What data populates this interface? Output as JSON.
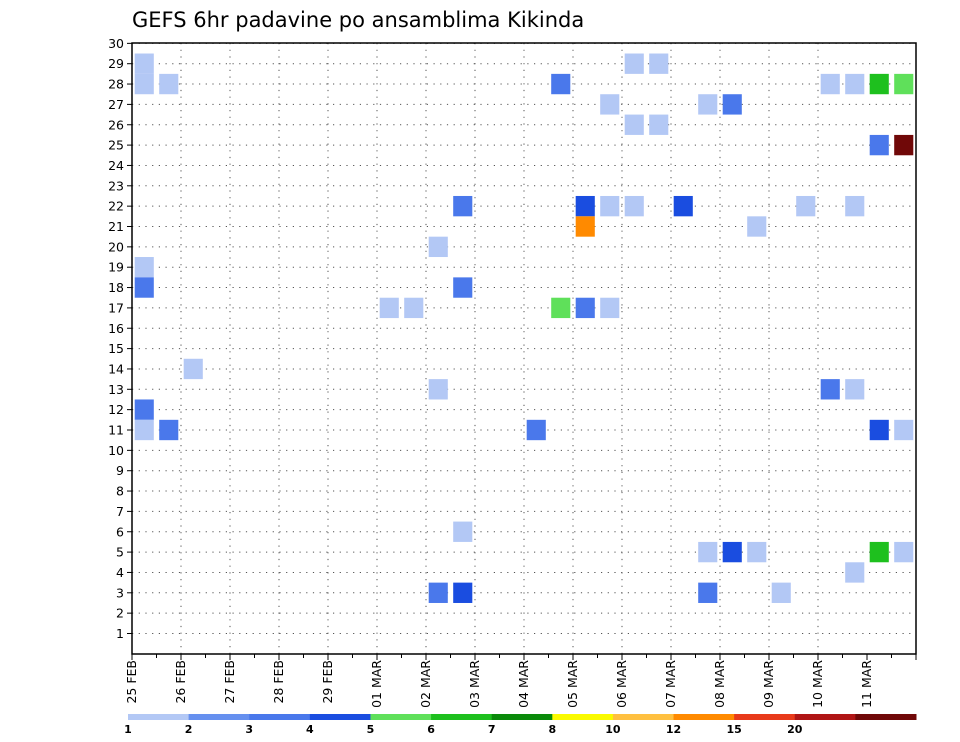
{
  "chart_data": {
    "type": "heatmap",
    "title": "GEFS 6hr padavine po ansamblima Kikinda",
    "y_ticks": [
      "1",
      "2",
      "3",
      "4",
      "5",
      "6",
      "7",
      "8",
      "9",
      "10",
      "11",
      "12",
      "13",
      "14",
      "15",
      "16",
      "17",
      "18",
      "19",
      "20",
      "21",
      "22",
      "23",
      "24",
      "25",
      "26",
      "27",
      "28",
      "29",
      "30"
    ],
    "ylim": [
      0,
      30
    ],
    "x_ticks": [
      "25 FEB",
      "26 FEB",
      "27 FEB",
      "28 FEB",
      "29 FEB",
      "01 MAR",
      "02 MAR",
      "03 MAR",
      "04 MAR",
      "05 MAR",
      "06 MAR",
      "07 MAR",
      "08 MAR",
      "09 MAR",
      "10 MAR",
      "11 MAR"
    ],
    "x_unit": "6-hour step",
    "grid": true,
    "legend": {
      "position": "bottom",
      "labels": [
        "1",
        "2",
        "3",
        "4",
        "5",
        "6",
        "7",
        "8",
        "10",
        "12",
        "15",
        "20"
      ],
      "colors": [
        "#b3c8f5",
        "#6690ef",
        "#4a78eb",
        "#1a4de0",
        "#5fe05a",
        "#1ec01e",
        "#0a8a0a",
        "#fafa00",
        "#ffc040",
        "#ff8a00",
        "#e83a1a",
        "#b01515",
        "#700808"
      ]
    },
    "cells": [
      {
        "x": 0,
        "y": 29,
        "c": 0
      },
      {
        "x": 0,
        "y": 28,
        "c": 0
      },
      {
        "x": 1,
        "y": 28,
        "c": 0
      },
      {
        "x": 17,
        "y": 28,
        "c": 2
      },
      {
        "x": 20,
        "y": 29,
        "c": 0
      },
      {
        "x": 21,
        "y": 29,
        "c": 0
      },
      {
        "x": 28,
        "y": 28,
        "c": 0
      },
      {
        "x": 29,
        "y": 28,
        "c": 0
      },
      {
        "x": 30,
        "y": 28,
        "c": 5
      },
      {
        "x": 31,
        "y": 28,
        "c": 4
      },
      {
        "x": 19,
        "y": 27,
        "c": 0
      },
      {
        "x": 23,
        "y": 27,
        "c": 0
      },
      {
        "x": 24,
        "y": 27,
        "c": 2
      },
      {
        "x": 20,
        "y": 26,
        "c": 0
      },
      {
        "x": 21,
        "y": 26,
        "c": 0
      },
      {
        "x": 30,
        "y": 25,
        "c": 2
      },
      {
        "x": 31,
        "y": 25,
        "c": 12
      },
      {
        "x": 13,
        "y": 22,
        "c": 2
      },
      {
        "x": 18,
        "y": 22,
        "c": 3
      },
      {
        "x": 19,
        "y": 22,
        "c": 0
      },
      {
        "x": 20,
        "y": 22,
        "c": 0
      },
      {
        "x": 22,
        "y": 22,
        "c": 3
      },
      {
        "x": 27,
        "y": 22,
        "c": 0
      },
      {
        "x": 29,
        "y": 22,
        "c": 0
      },
      {
        "x": 18,
        "y": 21,
        "c": 9
      },
      {
        "x": 25,
        "y": 21,
        "c": 0
      },
      {
        "x": 12,
        "y": 20,
        "c": 0
      },
      {
        "x": 0,
        "y": 19,
        "c": 0
      },
      {
        "x": 0,
        "y": 18,
        "c": 2
      },
      {
        "x": 13,
        "y": 18,
        "c": 2
      },
      {
        "x": 10,
        "y": 17,
        "c": 0
      },
      {
        "x": 11,
        "y": 17,
        "c": 0
      },
      {
        "x": 17,
        "y": 17,
        "c": 4
      },
      {
        "x": 18,
        "y": 17,
        "c": 2
      },
      {
        "x": 19,
        "y": 17,
        "c": 0
      },
      {
        "x": 2,
        "y": 14,
        "c": 0
      },
      {
        "x": 12,
        "y": 13,
        "c": 0
      },
      {
        "x": 28,
        "y": 13,
        "c": 2
      },
      {
        "x": 29,
        "y": 13,
        "c": 0
      },
      {
        "x": 0,
        "y": 12,
        "c": 2
      },
      {
        "x": 0,
        "y": 11,
        "c": 0
      },
      {
        "x": 1,
        "y": 11,
        "c": 2
      },
      {
        "x": 16,
        "y": 11,
        "c": 2
      },
      {
        "x": 30,
        "y": 11,
        "c": 3
      },
      {
        "x": 31,
        "y": 11,
        "c": 0
      },
      {
        "x": 13,
        "y": 6,
        "c": 0
      },
      {
        "x": 23,
        "y": 5,
        "c": 0
      },
      {
        "x": 24,
        "y": 5,
        "c": 3
      },
      {
        "x": 25,
        "y": 5,
        "c": 0
      },
      {
        "x": 30,
        "y": 5,
        "c": 5
      },
      {
        "x": 31,
        "y": 5,
        "c": 0
      },
      {
        "x": 29,
        "y": 4,
        "c": 0
      },
      {
        "x": 12,
        "y": 3,
        "c": 2
      },
      {
        "x": 13,
        "y": 3,
        "c": 3
      },
      {
        "x": 23,
        "y": 3,
        "c": 2
      },
      {
        "x": 26,
        "y": 3,
        "c": 0
      }
    ]
  }
}
